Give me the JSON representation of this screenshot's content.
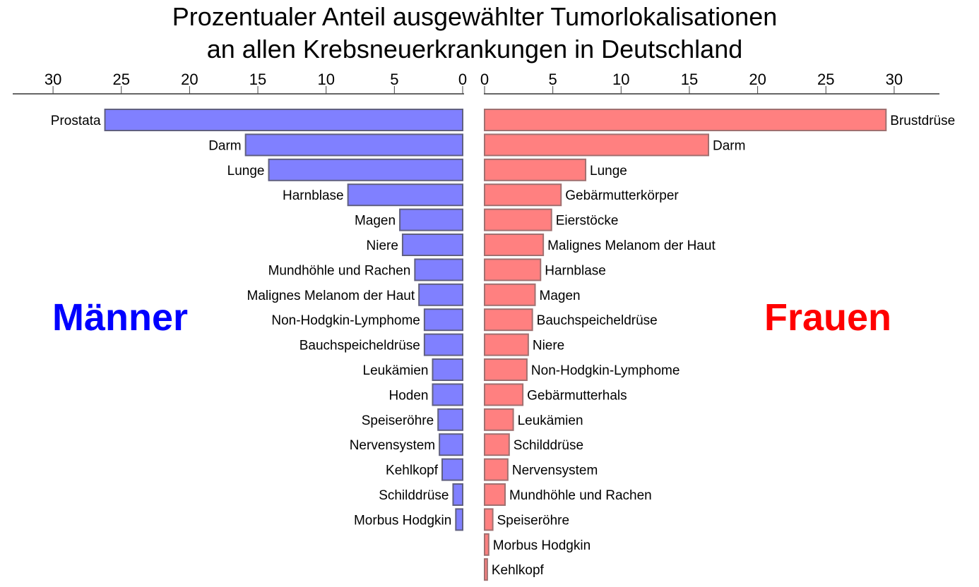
{
  "chart_data": [
    {
      "type": "bar",
      "orientation": "horizontal",
      "direction": "right-to-left",
      "title": "Prozentualer Anteil ausgewählter Tumorlokalisationen an allen Krebsneuerkrankungen in Deutschland",
      "title_lines": [
        "Prozentualer Anteil ausgewählter Tumorlokalisationen",
        "an allen Krebsneuerkrankungen in Deutschland"
      ],
      "panel_label": "Männer",
      "color": "#8080ff",
      "label_color": "#0000ff",
      "xlim": [
        0,
        30
      ],
      "ticks": [
        "0",
        "5",
        "10",
        "15",
        "20",
        "25",
        "30"
      ],
      "categories": [
        "Prostata",
        "Darm",
        "Lunge",
        "Harnblase",
        "Magen",
        "Niere",
        "Mundhöhle und Rachen",
        "Malignes Melanom der Haut",
        "Non-Hodgkin-Lymphome",
        "Bauchspeicheldrüse",
        "Leukämien",
        "Hoden",
        "Speiseröhre",
        "Nervensystem",
        "Kehlkopf",
        "Schilddrüse",
        "Morbus Hodgkin"
      ],
      "values": [
        26.2,
        15.9,
        14.2,
        8.4,
        4.6,
        4.4,
        3.5,
        3.2,
        2.8,
        2.8,
        2.2,
        2.2,
        1.8,
        1.7,
        1.5,
        0.7,
        0.5
      ]
    },
    {
      "type": "bar",
      "orientation": "horizontal",
      "direction": "left-to-right",
      "panel_label": "Frauen",
      "color": "#ff8080",
      "label_color": "#ff0000",
      "xlim": [
        0,
        30
      ],
      "ticks": [
        "0",
        "5",
        "10",
        "15",
        "20",
        "25",
        "30"
      ],
      "categories": [
        "Brustdrüse",
        "Darm",
        "Lunge",
        "Gebärmutterkörper",
        "Eierstöcke",
        "Malignes Melanom der Haut",
        "Harnblase",
        "Magen",
        "Bauchspeicheldrüse",
        "Niere",
        "Non-Hodgkin-Lymphome",
        "Gebärmutterhals",
        "Leukämien",
        "Schilddrüse",
        "Nervensystem",
        "Mundhöhle und Rachen",
        "Speiseröhre",
        "Morbus Hodgkin",
        "Kehlkopf"
      ],
      "values": [
        29.4,
        16.4,
        7.4,
        5.6,
        4.9,
        4.3,
        4.1,
        3.7,
        3.5,
        3.2,
        3.1,
        2.8,
        2.1,
        1.8,
        1.7,
        1.5,
        0.6,
        0.3,
        0.2
      ]
    }
  ]
}
